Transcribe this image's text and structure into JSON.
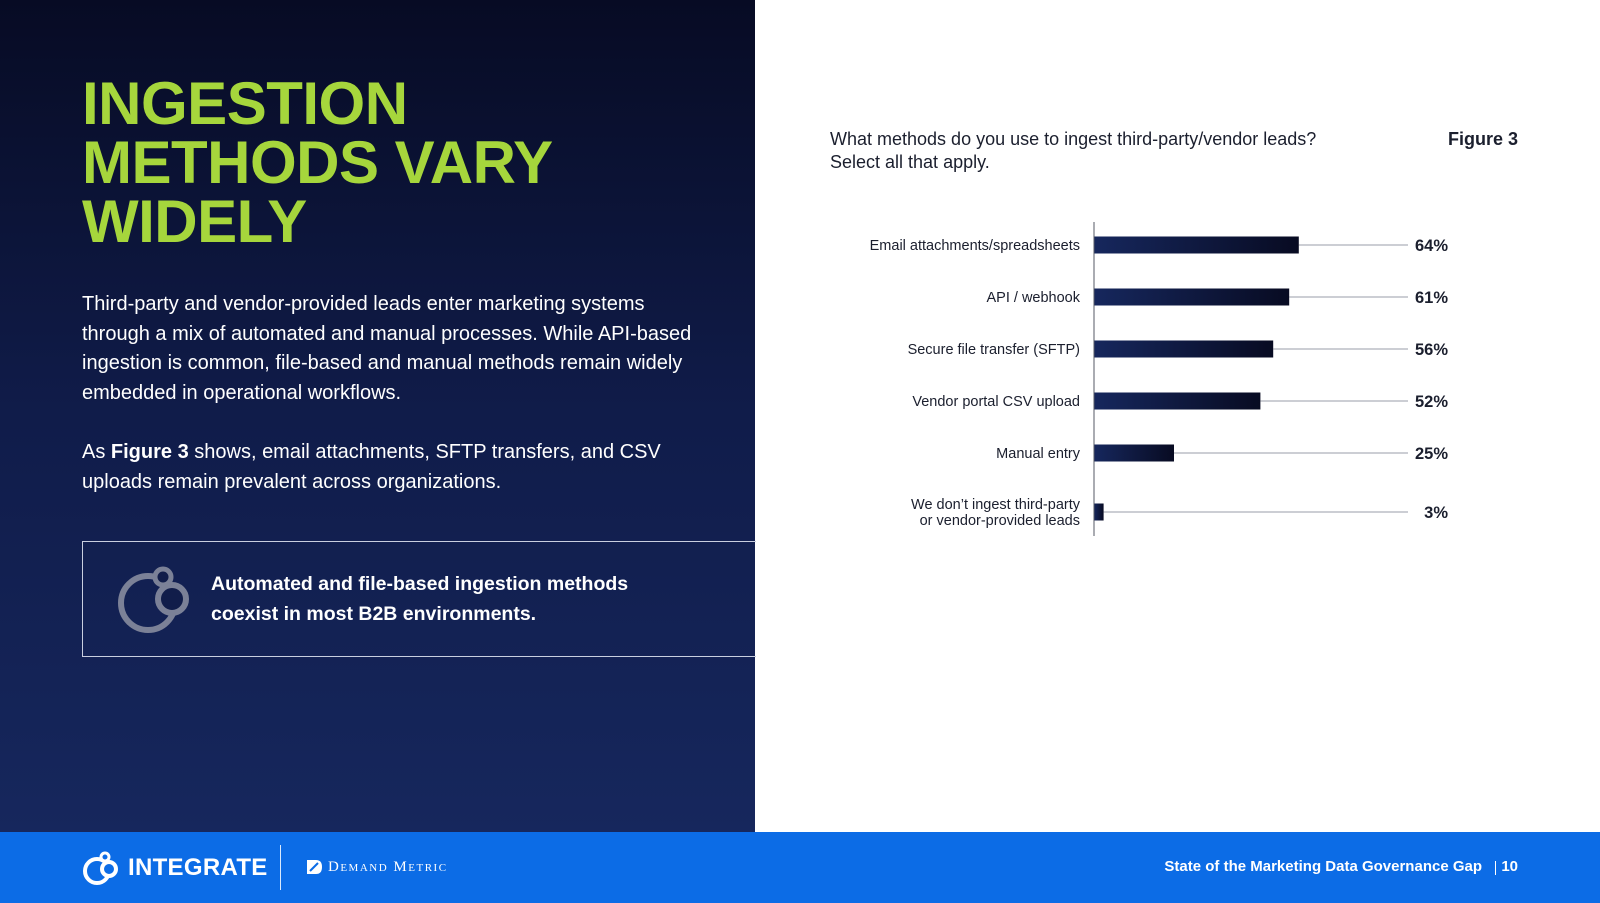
{
  "headline": [
    "INGESTION",
    "METHODS VARY",
    "WIDELY"
  ],
  "paragraph1": "Third-party and vendor-provided leads enter marketing systems through a mix of automated and manual processes. While API-based ingestion is common, file-based and manual methods remain widely embedded in operational workflows.",
  "paragraph2": {
    "prefix": "As ",
    "bold": "Figure 3",
    "suffix": " shows, email attachments, SFTP transfers, and CSV uploads remain prevalent across organizations."
  },
  "callout": {
    "icon": "integrate-circles-icon",
    "text_line1": "Automated and file-based ingestion methods",
    "text_line2": "coexist in most B2B environments."
  },
  "question": [
    "What methods do you use to ingest third-party/vendor leads?",
    "Select all that apply."
  ],
  "figure_label": "Figure 3",
  "chart_data": {
    "type": "bar",
    "orientation": "horizontal",
    "categories": [
      [
        "Email attachments/spreadsheets"
      ],
      [
        "API / webhook"
      ],
      [
        "Secure file transfer (SFTP)"
      ],
      [
        "Vendor portal CSV upload"
      ],
      [
        "Manual entry"
      ],
      [
        "We don’t ingest third-party",
        "or vendor-provided leads"
      ]
    ],
    "values": [
      64,
      61,
      56,
      52,
      25,
      3
    ],
    "value_labels": [
      "64%",
      "61%",
      "56%",
      "52%",
      "25%",
      "3%"
    ],
    "xlim": [
      0,
      100
    ],
    "unit": "%",
    "bar_color_start": "#16275d",
    "bar_color_end": "#080b22",
    "leader_line_color": "#9a9ea8",
    "grid": false,
    "legend": "none"
  },
  "footer": {
    "brand1": "INTEGRATE",
    "brand2": "Demand Metric",
    "report_title": "State of the Marketing Data Governance Gap",
    "page_number": "10"
  },
  "colors": {
    "headline": "#a6d63c",
    "footer_bg": "#0c6ce6",
    "panel_top": "#070b24",
    "panel_bottom": "#16275d"
  }
}
